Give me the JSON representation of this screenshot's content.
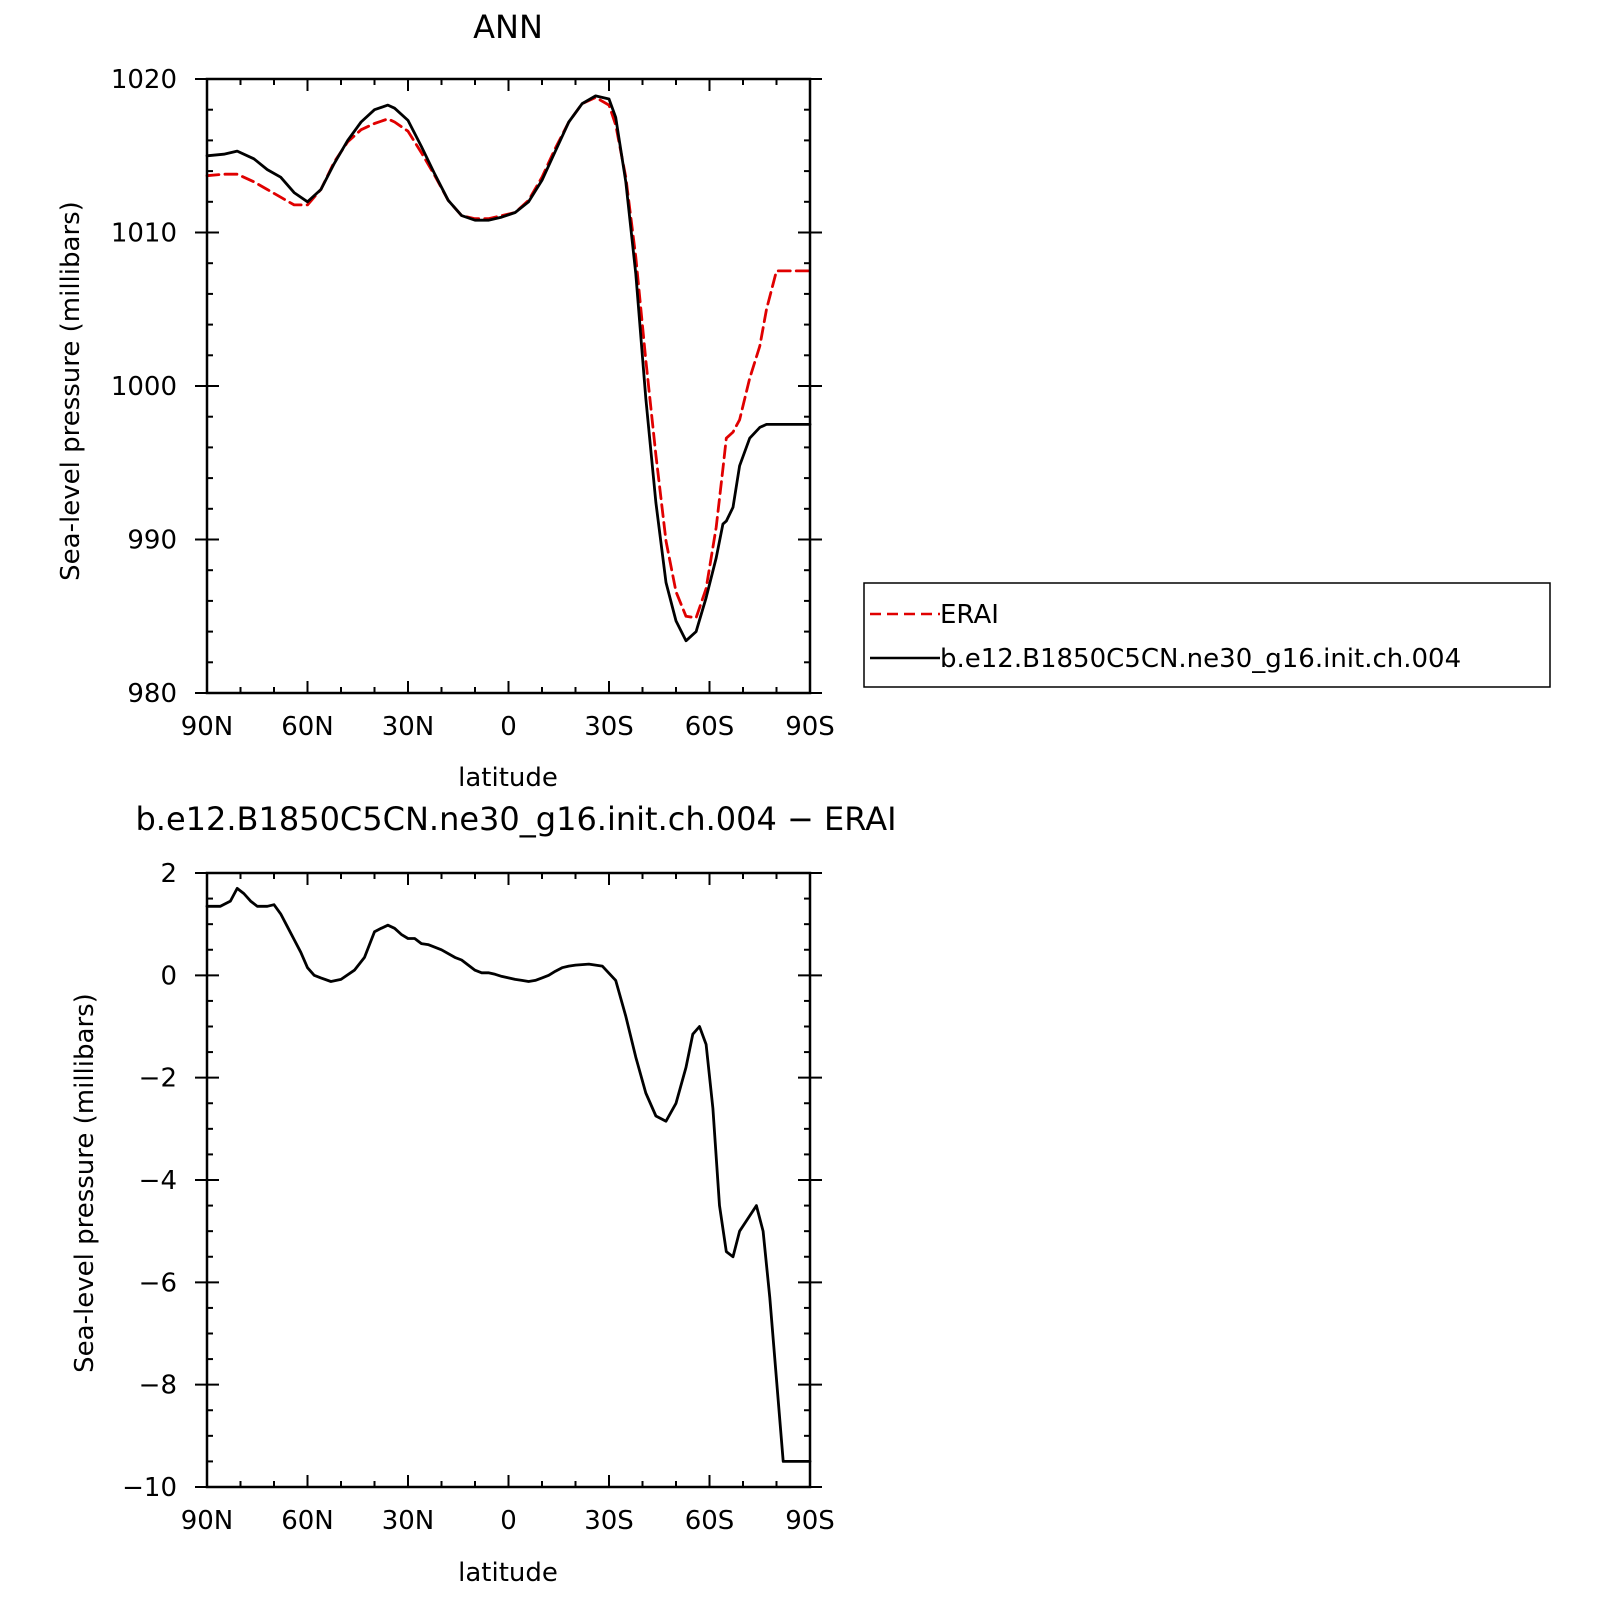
{
  "chart_data": [
    {
      "type": "line",
      "title": "ANN",
      "xlabel": "latitude",
      "ylabel": "Sea-level pressure (millibars)",
      "xlim": [
        90,
        -90
      ],
      "ylim": [
        980,
        1020
      ],
      "xticks": [
        90,
        60,
        30,
        0,
        -30,
        -60,
        -90
      ],
      "xtick_labels": [
        "90N",
        "60N",
        "30N",
        "0",
        "30S",
        "60S",
        "90S"
      ],
      "yticks": [
        980,
        990,
        1000,
        1010,
        1020
      ],
      "ytick_labels": [
        "980",
        "990",
        "1000",
        "1010",
        "1020"
      ],
      "grid": false,
      "legend": "right",
      "series": [
        {
          "name": "ERAI",
          "color": "#e00000",
          "dashed": true,
          "x": [
            90,
            85,
            81,
            76,
            72,
            68,
            64,
            60,
            56,
            52,
            48,
            44,
            40,
            36,
            34,
            30,
            26,
            22,
            18,
            14,
            10,
            6,
            2,
            -2,
            -6,
            -10,
            -14,
            -18,
            -22,
            -26,
            -30,
            -32,
            -35,
            -38,
            -41,
            -44,
            -47,
            -50,
            -53,
            -56,
            -59,
            -62,
            -64,
            -65,
            -67,
            -69,
            -72,
            -75,
            -77,
            -80,
            -82,
            -84,
            -86,
            -88,
            -90
          ],
          "values": [
            1013.7,
            1013.8,
            1013.8,
            1013.3,
            1012.8,
            1012.3,
            1011.8,
            1011.8,
            1012.8,
            1014.6,
            1015.9,
            1016.7,
            1017.1,
            1017.4,
            1017.2,
            1016.6,
            1015.2,
            1013.7,
            1012.1,
            1011.1,
            1010.9,
            1010.9,
            1011.1,
            1011.3,
            1012.1,
            1013.6,
            1015.5,
            1017.2,
            1018.4,
            1018.8,
            1018.3,
            1017.0,
            1013.6,
            1008.4,
            1001.7,
            995.5,
            989.9,
            986.6,
            985.0,
            984.9,
            986.8,
            990.8,
            994.6,
            996.6,
            997.0,
            997.8,
            1000.5,
            1002.6,
            1005.0,
            1007.5,
            1007.5,
            1007.5,
            1007.5,
            1007.5,
            1007.5
          ]
        },
        {
          "name": "b.e12.B1850C5CN.ne30_g16.init.ch.004",
          "color": "#000000",
          "dashed": false,
          "x": [
            90,
            85,
            81,
            76,
            72,
            68,
            64,
            60,
            56,
            52,
            48,
            44,
            40,
            36,
            34,
            30,
            26,
            22,
            18,
            14,
            10,
            6,
            2,
            -2,
            -6,
            -10,
            -14,
            -18,
            -22,
            -26,
            -30,
            -32,
            -35,
            -38,
            -41,
            -44,
            -47,
            -50,
            -53,
            -56,
            -59,
            -62,
            -64,
            -65,
            -67,
            -69,
            -72,
            -75,
            -77,
            -80,
            -82,
            -84,
            -86,
            -88,
            -90
          ],
          "values": [
            1015.0,
            1015.1,
            1015.3,
            1014.8,
            1014.1,
            1013.6,
            1012.6,
            1012.0,
            1012.8,
            1014.5,
            1016.0,
            1017.2,
            1018.0,
            1018.3,
            1018.1,
            1017.3,
            1015.6,
            1013.8,
            1012.1,
            1011.1,
            1010.8,
            1010.8,
            1011.0,
            1011.3,
            1012.0,
            1013.4,
            1015.3,
            1017.2,
            1018.4,
            1018.9,
            1018.7,
            1017.5,
            1013.3,
            1007.3,
            999.2,
            992.4,
            987.2,
            984.7,
            983.4,
            984.0,
            986.2,
            988.8,
            991.0,
            991.2,
            992.1,
            994.8,
            996.6,
            997.3,
            997.5,
            997.5,
            997.5,
            997.5,
            997.5,
            997.5,
            997.5
          ]
        }
      ]
    },
    {
      "type": "line",
      "title": "b.e12.B1850C5CN.ne30_g16.init.ch.004 − ERAI",
      "xlabel": "latitude",
      "ylabel": "Sea-level pressure (millibars)",
      "xlim": [
        90,
        -90
      ],
      "ylim": [
        -10,
        2
      ],
      "xticks": [
        90,
        60,
        30,
        0,
        -30,
        -60,
        -90
      ],
      "xtick_labels": [
        "90N",
        "60N",
        "30N",
        "0",
        "30S",
        "60S",
        "90S"
      ],
      "yticks": [
        -10,
        -8,
        -6,
        -4,
        -2,
        0,
        2
      ],
      "ytick_labels": [
        "−10",
        "−8",
        "−6",
        "−4",
        "−2",
        "0",
        "2"
      ],
      "grid": false,
      "series": [
        {
          "color": "#000000",
          "dashed": false,
          "x": [
            90,
            86,
            83,
            81,
            79,
            77,
            75,
            72,
            70,
            68,
            66,
            64,
            62,
            60,
            58,
            56,
            53,
            50,
            46,
            43,
            40,
            38,
            36,
            34,
            32,
            30,
            28,
            26,
            24,
            20,
            16,
            14,
            12,
            10,
            8,
            6,
            4,
            2,
            0,
            -2,
            -4,
            -6,
            -8,
            -10,
            -12,
            -14,
            -16,
            -18,
            -20,
            -24,
            -28,
            -32,
            -35,
            -38,
            -41,
            -44,
            -47,
            -50,
            -53,
            -55,
            -57,
            -59,
            -61,
            -63,
            -65,
            -67,
            -69,
            -71,
            -74,
            -76,
            -78,
            -80,
            -82,
            -84,
            -86,
            -88,
            -90
          ],
          "values": [
            1.35,
            1.35,
            1.45,
            1.7,
            1.6,
            1.45,
            1.35,
            1.35,
            1.38,
            1.2,
            0.95,
            0.7,
            0.45,
            0.15,
            0.0,
            -0.05,
            -0.12,
            -0.08,
            0.1,
            0.35,
            0.85,
            0.92,
            0.98,
            0.92,
            0.8,
            0.72,
            0.72,
            0.62,
            0.6,
            0.5,
            0.35,
            0.3,
            0.2,
            0.1,
            0.05,
            0.05,
            0.02,
            -0.02,
            -0.05,
            -0.08,
            -0.1,
            -0.12,
            -0.1,
            -0.05,
            0.0,
            0.08,
            0.15,
            0.18,
            0.2,
            0.22,
            0.18,
            -0.1,
            -0.8,
            -1.6,
            -2.3,
            -2.75,
            -2.85,
            -2.5,
            -1.8,
            -1.15,
            -1.0,
            -1.35,
            -2.6,
            -4.5,
            -5.4,
            -5.5,
            -5.0,
            -4.8,
            -4.5,
            -5.0,
            -6.3,
            -7.9,
            -9.5,
            -9.5,
            -9.5,
            -9.5,
            -9.5
          ]
        }
      ]
    }
  ]
}
